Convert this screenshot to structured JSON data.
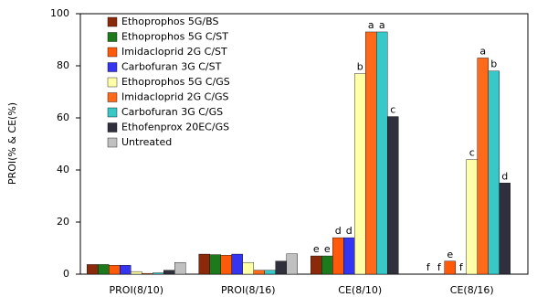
{
  "chart_data": {
    "type": "bar",
    "y_label": "PROI(% & CE(%)",
    "categories": [
      "PROI(8/10)",
      "PROI(8/16)",
      "CE(8/10)",
      "CE(8/16)"
    ],
    "series": [
      {
        "name": "Ethoprophos 5G/BS",
        "color": "#8b2a0a",
        "values": [
          3.7,
          7.7,
          7,
          0
        ],
        "letters": [
          null,
          null,
          "e",
          "f"
        ]
      },
      {
        "name": "Ethoprophos 5G C/ST",
        "color": "#1c7a1c",
        "values": [
          3.7,
          7.5,
          7,
          0
        ],
        "letters": [
          null,
          null,
          "e",
          "f"
        ]
      },
      {
        "name": "Imidacloprid 2G C/ST",
        "color": "#ff5a0a",
        "values": [
          3.4,
          7.3,
          14,
          5
        ],
        "letters": [
          null,
          null,
          "d",
          "e"
        ]
      },
      {
        "name": "Carbofuran 3G C/ST",
        "color": "#3535f0",
        "values": [
          3.4,
          7.7,
          14,
          0
        ],
        "letters": [
          null,
          null,
          "d",
          "f"
        ]
      },
      {
        "name": "Ethoprophos 5G C/GS",
        "color": "#ffffa8",
        "values": [
          1,
          4.5,
          77,
          44
        ],
        "letters": [
          null,
          null,
          "b",
          "c"
        ]
      },
      {
        "name": "Imidacloprid 2G C/GS",
        "color": "#ff6a1a",
        "values": [
          0.3,
          1.5,
          93,
          83
        ],
        "letters": [
          null,
          null,
          "a",
          "a"
        ]
      },
      {
        "name": "Carbofuran 3G C/GS",
        "color": "#38c8c8",
        "values": [
          0.5,
          1.5,
          93,
          78
        ],
        "letters": [
          null,
          null,
          "a",
          "b"
        ]
      },
      {
        "name": "Ethofenprox 20EC/GS",
        "color": "#30303c",
        "values": [
          1.5,
          5,
          60.5,
          35
        ],
        "letters": [
          null,
          null,
          "c",
          "d"
        ]
      },
      {
        "name": "Untreated",
        "color": "#c0c0c0",
        "values": [
          4.5,
          7.8,
          null,
          null
        ],
        "letters": [
          null,
          null,
          null,
          null
        ]
      }
    ],
    "ylim": [
      0,
      100
    ],
    "yticks": [
      0,
      20,
      40,
      60,
      80,
      100
    ],
    "legend": "upper-left"
  }
}
